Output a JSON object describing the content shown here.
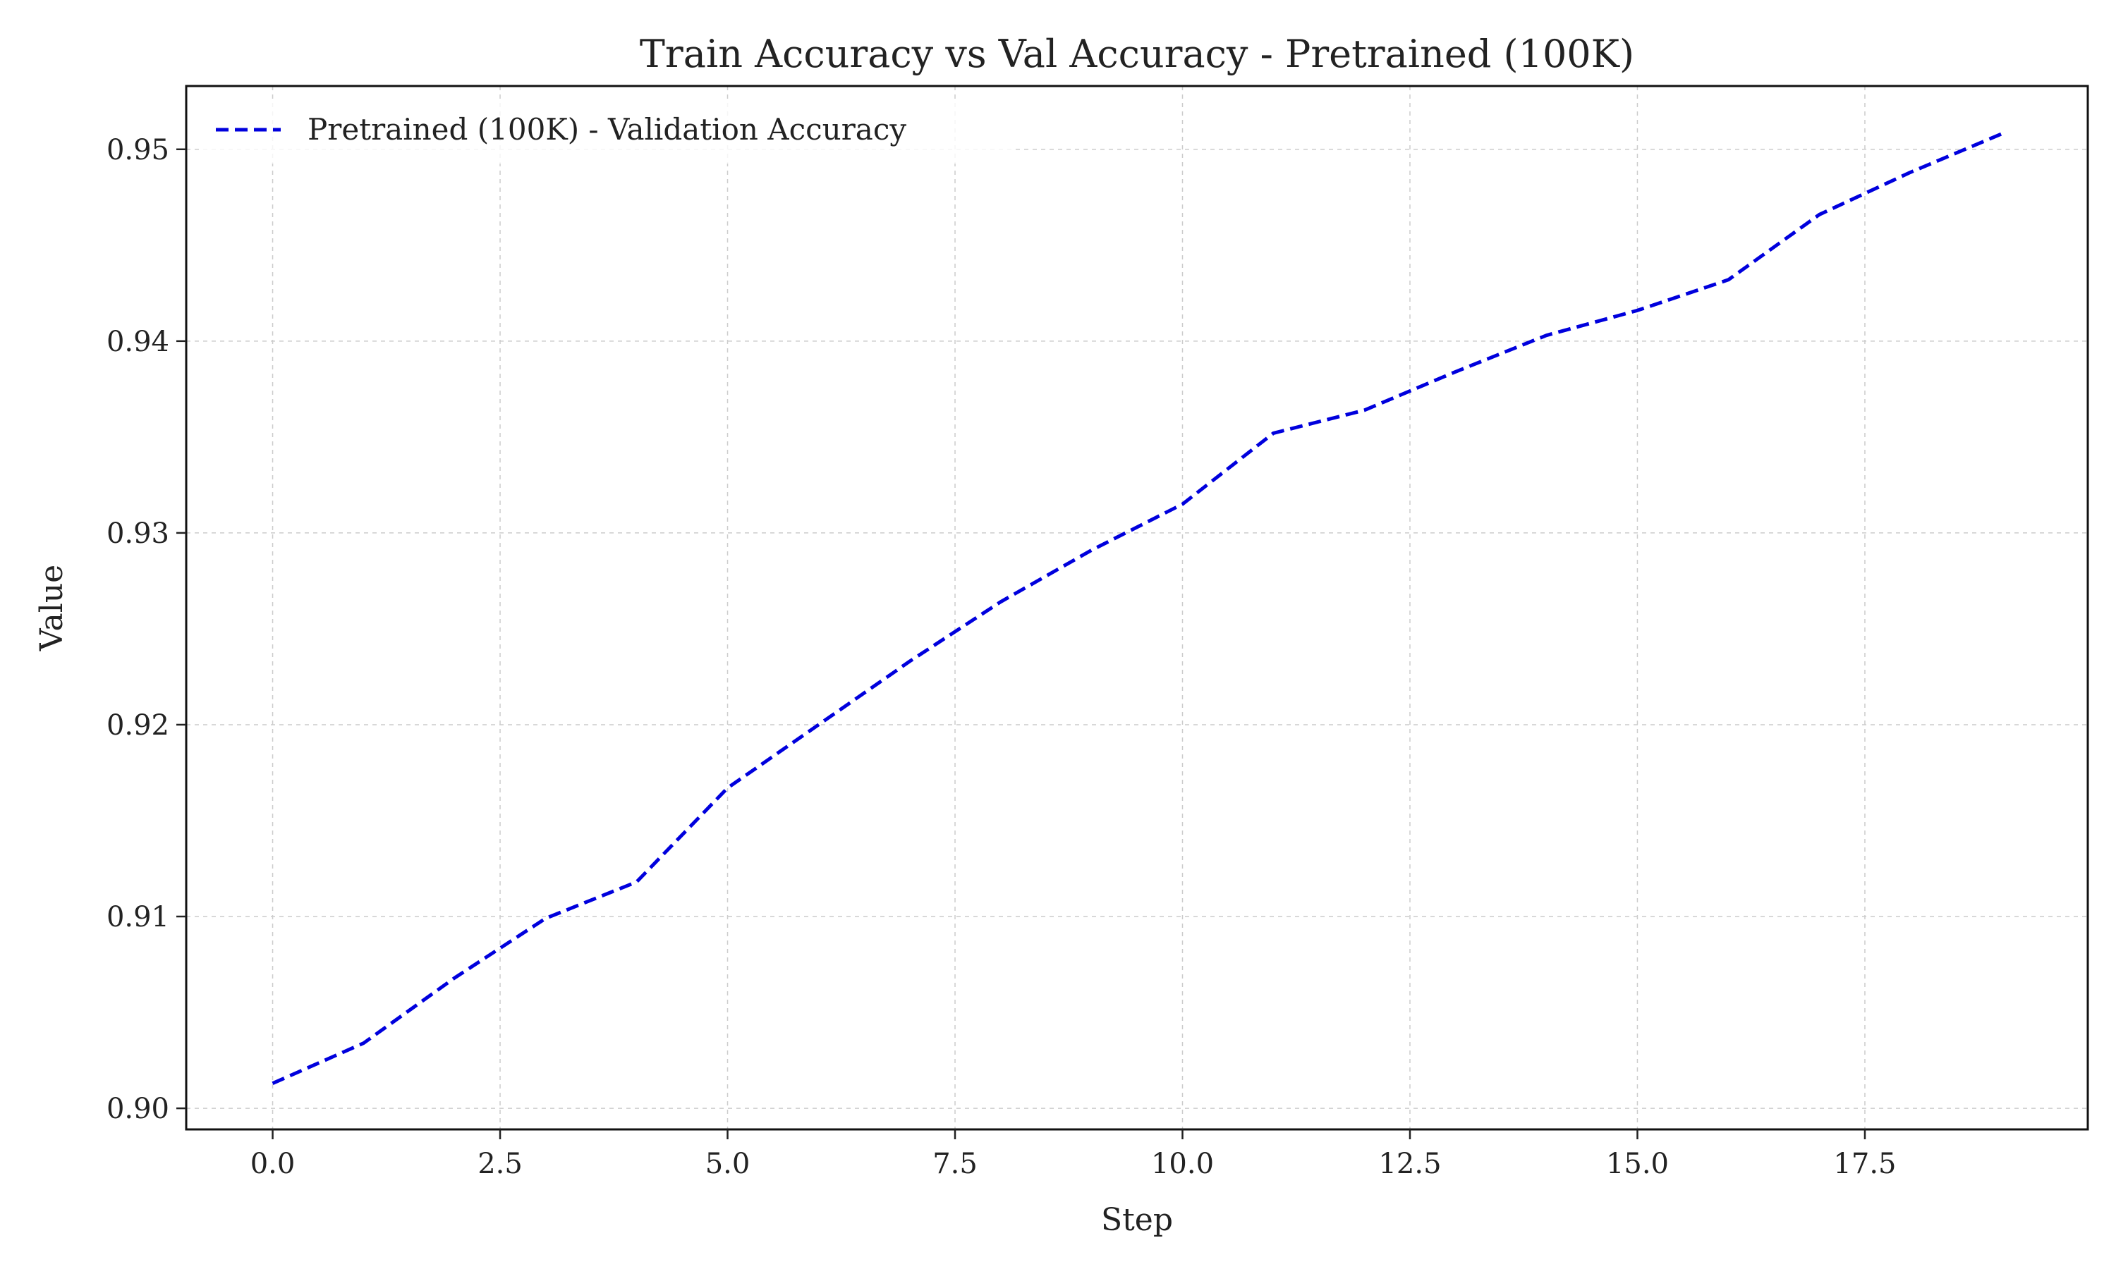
{
  "chart_data": {
    "type": "line",
    "title": "Train Accuracy vs Val Accuracy - Pretrained (100K)",
    "xlabel": "Step",
    "ylabel": "Value",
    "xlim": [
      -0.95,
      19.95
    ],
    "ylim": [
      0.8989,
      0.9533
    ],
    "xticks": [
      0.0,
      2.5,
      5.0,
      7.5,
      10.0,
      12.5,
      15.0,
      17.5
    ],
    "xtick_labels": [
      "0.0",
      "2.5",
      "5.0",
      "7.5",
      "10.0",
      "12.5",
      "15.0",
      "17.5"
    ],
    "yticks": [
      0.9,
      0.91,
      0.92,
      0.93,
      0.94,
      0.95
    ],
    "ytick_labels": [
      "0.90",
      "0.91",
      "0.92",
      "0.93",
      "0.94",
      "0.95"
    ],
    "grid": true,
    "legend_position": "top-left",
    "series": [
      {
        "name": "Pretrained (100K) - Validation Accuracy",
        "color": "#0000dd",
        "line_style": "dashed",
        "x": [
          0,
          1,
          2,
          3,
          4,
          5,
          6,
          7,
          8,
          9,
          10,
          11,
          12,
          13,
          14,
          15,
          16,
          17,
          18,
          19
        ],
        "y": [
          0.9013,
          0.9034,
          0.9068,
          0.9099,
          0.9118,
          0.9167,
          0.92,
          0.9233,
          0.9264,
          0.9291,
          0.9315,
          0.9352,
          0.9364,
          0.9384,
          0.9403,
          0.9416,
          0.9432,
          0.9466,
          0.9488,
          0.9508
        ]
      }
    ]
  }
}
